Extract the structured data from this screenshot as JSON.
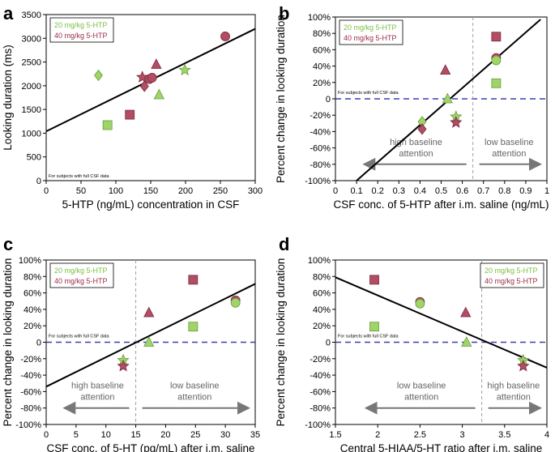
{
  "chart_data": [
    {
      "panel": "a",
      "type": "scatter",
      "xlabel": "5-HTP (ng/mL) concentration in CSF",
      "ylabel": "Looking duration (ms)",
      "xlim": [
        0,
        300
      ],
      "ylim": [
        0,
        3500
      ],
      "xticks": [
        0,
        50,
        100,
        150,
        200,
        250,
        300
      ],
      "xtick_labels": [
        "0",
        "50",
        "100",
        "150",
        "200",
        "250",
        "300"
      ],
      "yticks": [
        0,
        500,
        1000,
        1500,
        2000,
        2500,
        3000,
        3500
      ],
      "ytick_labels": [
        "0",
        "500",
        "1000",
        "1500",
        "2000",
        "2500",
        "3000",
        "3500"
      ],
      "note": "For subjects with full CSF data",
      "legend": [
        "20 mg/kg 5-HTP",
        "40 mg/kg 5-HTP"
      ],
      "legend_position": "top-left",
      "regression": [
        [
          0,
          1040
        ],
        [
          300,
          3200
        ]
      ],
      "points": [
        {
          "x": 75,
          "y": 2220,
          "shape": "diamond",
          "dose": 20
        },
        {
          "x": 88,
          "y": 1170,
          "shape": "square",
          "dose": 20
        },
        {
          "x": 120,
          "y": 1390,
          "shape": "square",
          "dose": 40
        },
        {
          "x": 138,
          "y": 2180,
          "shape": "star",
          "dose": 40
        },
        {
          "x": 141,
          "y": 1990,
          "shape": "diamond",
          "dose": 40
        },
        {
          "x": 148,
          "y": 2140,
          "shape": "circle",
          "dose": 40
        },
        {
          "x": 152,
          "y": 2170,
          "shape": "circle",
          "dose": 40
        },
        {
          "x": 158,
          "y": 2450,
          "shape": "triangle",
          "dose": 40
        },
        {
          "x": 162,
          "y": 1810,
          "shape": "triangle",
          "dose": 20
        },
        {
          "x": 199,
          "y": 2330,
          "shape": "star",
          "dose": 20
        },
        {
          "x": 257,
          "y": 3040,
          "shape": "circle",
          "dose": 40
        }
      ]
    },
    {
      "panel": "b",
      "type": "scatter",
      "xlabel": "CSF conc. of 5-HTP after i.m. saline (ng/mL)",
      "ylabel": "Percent change in looking duration",
      "xlim": [
        0,
        1
      ],
      "ylim": [
        -100,
        100
      ],
      "xticks": [
        0,
        0.1,
        0.2,
        0.3,
        0.4,
        0.5,
        0.6,
        0.7,
        0.8,
        0.9,
        1
      ],
      "xtick_labels": [
        "0",
        "0.1",
        "0.2",
        "0.3",
        "0.4",
        "0.5",
        "0.6",
        "0.7",
        "0.8",
        "0.9",
        "1"
      ],
      "yticks": [
        -100,
        -80,
        -60,
        -40,
        -20,
        0,
        20,
        40,
        60,
        80,
        100
      ],
      "ytick_labels": [
        "-100%",
        "-80%",
        "-60%",
        "-40%",
        "-20%",
        "0",
        "20%",
        "40%",
        "60%",
        "80%",
        "100%"
      ],
      "note": "For subjects with full CSF data",
      "legend": [
        "20 mg/kg 5-HTP",
        "40 mg/kg 5-HTP"
      ],
      "legend_position": "top-left",
      "regression": [
        [
          0.1,
          -100
        ],
        [
          0.97,
          97
        ]
      ],
      "split_x": 0.65,
      "left_label": [
        "high baseline",
        "attention"
      ],
      "right_label": [
        "low baseline",
        "attention"
      ],
      "points": [
        {
          "x": 0.41,
          "y": -28,
          "shape": "diamond",
          "dose": 20
        },
        {
          "x": 0.41,
          "y": -37,
          "shape": "diamond",
          "dose": 40
        },
        {
          "x": 0.52,
          "y": 35,
          "shape": "triangle",
          "dose": 40
        },
        {
          "x": 0.53,
          "y": 0,
          "shape": "triangle",
          "dose": 20
        },
        {
          "x": 0.57,
          "y": -22,
          "shape": "star",
          "dose": 20
        },
        {
          "x": 0.57,
          "y": -29,
          "shape": "star",
          "dose": 40
        },
        {
          "x": 0.76,
          "y": 76,
          "shape": "square",
          "dose": 40
        },
        {
          "x": 0.76,
          "y": 50,
          "shape": "circle",
          "dose": 40
        },
        {
          "x": 0.76,
          "y": 47,
          "shape": "circle",
          "dose": 20
        },
        {
          "x": 0.76,
          "y": 19,
          "shape": "square",
          "dose": 20
        }
      ]
    },
    {
      "panel": "c",
      "type": "scatter",
      "xlabel": "CSF conc. of 5-HT (pg/mL) after i.m. saline",
      "ylabel": "Percent change in looking duration",
      "xlim": [
        0,
        35
      ],
      "ylim": [
        -100,
        100
      ],
      "xticks": [
        0,
        5,
        10,
        15,
        20,
        25,
        30,
        35
      ],
      "xtick_labels": [
        "0",
        "5",
        "10",
        "15",
        "20",
        "25",
        "30",
        "35"
      ],
      "yticks": [
        -100,
        -80,
        -60,
        -40,
        -20,
        0,
        20,
        40,
        60,
        80,
        100
      ],
      "ytick_labels": [
        "-100%",
        "-80%",
        "-60%",
        "-40%",
        "-20%",
        "0",
        "20%",
        "40%",
        "60%",
        "80%",
        "100%"
      ],
      "note": "For subjects with full CSF data",
      "legend": [
        "20 mg/kg 5-HTP",
        "40 mg/kg 5-HTP"
      ],
      "legend_position": "top-left",
      "regression": [
        [
          0,
          -54
        ],
        [
          35,
          71
        ]
      ],
      "split_x": 15,
      "left_label": [
        "high baseline",
        "attention"
      ],
      "right_label": [
        "low baseline",
        "attention"
      ],
      "points": [
        {
          "x": 12.9,
          "y": -22,
          "shape": "star",
          "dose": 20
        },
        {
          "x": 12.9,
          "y": -29,
          "shape": "star",
          "dose": 40
        },
        {
          "x": 17.2,
          "y": 0,
          "shape": "triangle",
          "dose": 20
        },
        {
          "x": 17.2,
          "y": 36,
          "shape": "triangle",
          "dose": 40
        },
        {
          "x": 24.6,
          "y": 76,
          "shape": "square",
          "dose": 40
        },
        {
          "x": 24.6,
          "y": 19,
          "shape": "square",
          "dose": 20
        },
        {
          "x": 31.7,
          "y": 51,
          "shape": "circle",
          "dose": 40
        },
        {
          "x": 31.7,
          "y": 48,
          "shape": "circle",
          "dose": 20
        }
      ]
    },
    {
      "panel": "d",
      "type": "scatter",
      "xlabel": "Central 5-HIAA/5-HT ratio after i.m. saline",
      "ylabel": "Percent change in looking duration",
      "xlim": [
        1.5,
        4
      ],
      "ylim": [
        -100,
        100
      ],
      "xticks": [
        1.5,
        2,
        2.5,
        3,
        3.5,
        4
      ],
      "xtick_labels": [
        "1.5",
        "2",
        "2.5",
        "3",
        "3.5",
        "4"
      ],
      "yticks": [
        -100,
        -80,
        -60,
        -40,
        -20,
        0,
        20,
        40,
        60,
        80,
        100
      ],
      "ytick_labels": [
        "-100%",
        "-80%",
        "-60%",
        "-40%",
        "-20%",
        "0",
        "20%",
        "40%",
        "60%",
        "80%",
        "100%"
      ],
      "note": "For subjects with full CSF data",
      "legend": [
        "20 mg/kg 5-HTP",
        "40 mg/kg 5-HTP"
      ],
      "legend_position": "top-right",
      "regression": [
        [
          1.5,
          79
        ],
        [
          4,
          -31
        ]
      ],
      "split_x": 3.23,
      "left_label": [
        "low baseline",
        "attention"
      ],
      "right_label": [
        "high baseline",
        "attention"
      ],
      "points": [
        {
          "x": 1.96,
          "y": 76,
          "shape": "square",
          "dose": 40
        },
        {
          "x": 1.96,
          "y": 19,
          "shape": "square",
          "dose": 20
        },
        {
          "x": 2.5,
          "y": 49,
          "shape": "circle",
          "dose": 40
        },
        {
          "x": 2.5,
          "y": 47,
          "shape": "circle",
          "dose": 20
        },
        {
          "x": 3.04,
          "y": 36,
          "shape": "triangle",
          "dose": 40
        },
        {
          "x": 3.05,
          "y": 0,
          "shape": "triangle",
          "dose": 20
        },
        {
          "x": 3.72,
          "y": -22,
          "shape": "star",
          "dose": 20
        },
        {
          "x": 3.72,
          "y": -29,
          "shape": "star",
          "dose": 40
        }
      ]
    }
  ],
  "colors": {
    "dose20_fill": "#9fd46a",
    "dose20_stroke": "#6a9b3a",
    "dose40_fill": "#b24d63",
    "dose40_stroke": "#7a2a3c",
    "dose20_text": "#7bc043",
    "dose40_text": "#9b2d48",
    "zero_line": "#3b3fae",
    "split_line": "#a0a0a0",
    "arrow": "#777777",
    "regression": "#000000"
  }
}
